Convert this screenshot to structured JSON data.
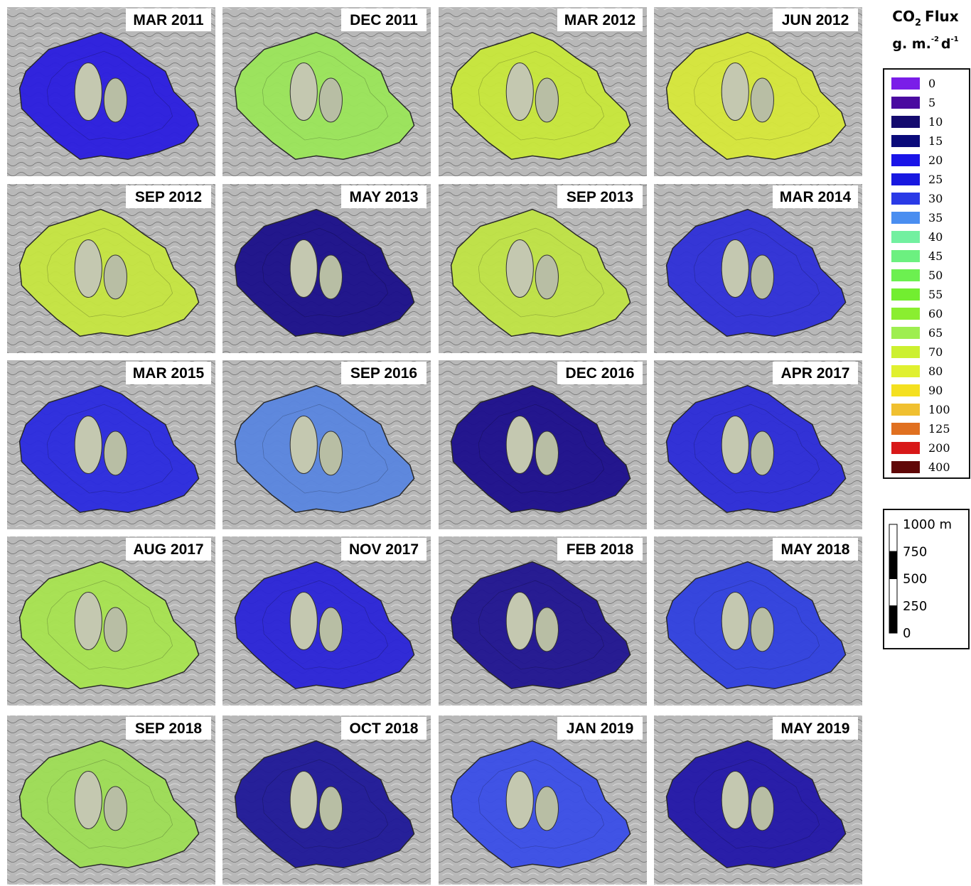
{
  "panels": [
    {
      "label": "MAR 2011",
      "color": "#2a1de0"
    },
    {
      "label": "DEC 2011",
      "color": "#9be65a"
    },
    {
      "label": "MAR 2012",
      "color": "#c8e83a"
    },
    {
      "label": "JUN 2012",
      "color": "#d7e83a"
    },
    {
      "label": "SEP 2012",
      "color": "#c6e640"
    },
    {
      "label": "MAY 2013",
      "color": "#1a0f8a"
    },
    {
      "label": "SEP 2013",
      "color": "#c0e445"
    },
    {
      "label": "MAR 2014",
      "color": "#2e30d8"
    },
    {
      "label": "MAR 2015",
      "color": "#2a2ae0"
    },
    {
      "label": "SEP 2016",
      "color": "#5a86e0"
    },
    {
      "label": "DEC 2016",
      "color": "#1c0e8c"
    },
    {
      "label": "APR 2017",
      "color": "#2b2bd8"
    },
    {
      "label": "AUG 2017",
      "color": "#a8e450"
    },
    {
      "label": "NOV 2017",
      "color": "#2a24d8"
    },
    {
      "label": "FEB 2018",
      "color": "#201490"
    },
    {
      "label": "MAY 2018",
      "color": "#3040e0"
    },
    {
      "label": "SEP 2018",
      "color": "#9ede55"
    },
    {
      "label": "OCT 2018",
      "color": "#1f1898"
    },
    {
      "label": "JAN 2019",
      "color": "#3a4ee8"
    },
    {
      "label": "MAY 2019",
      "color": "#2216a8"
    }
  ],
  "legend": {
    "title_main": "CO",
    "title_sub": "2",
    "title_end": "Flux",
    "unit_main": "g. m.",
    "unit_exp1": "-2",
    "unit_mid": "d",
    "unit_exp2": "-1",
    "entries": [
      {
        "label": "0",
        "color": "#7a1de8"
      },
      {
        "label": "5",
        "color": "#4a0aa0"
      },
      {
        "label": "10",
        "color": "#140a6e"
      },
      {
        "label": "15",
        "color": "#0a0a7a"
      },
      {
        "label": "20",
        "color": "#1a14e8"
      },
      {
        "label": "25",
        "color": "#1818e0"
      },
      {
        "label": "30",
        "color": "#2a3ae6"
      },
      {
        "label": "35",
        "color": "#4a8ef0"
      },
      {
        "label": "40",
        "color": "#72f0a0"
      },
      {
        "label": "45",
        "color": "#6cf080"
      },
      {
        "label": "50",
        "color": "#6cf050"
      },
      {
        "label": "55",
        "color": "#72ee30"
      },
      {
        "label": "60",
        "color": "#8aee30"
      },
      {
        "label": "65",
        "color": "#9eee50"
      },
      {
        "label": "70",
        "color": "#ccf030"
      },
      {
        "label": "80",
        "color": "#e0f030"
      },
      {
        "label": "90",
        "color": "#f4e020"
      },
      {
        "label": "100",
        "color": "#f0c030"
      },
      {
        "label": "125",
        "color": "#e07020"
      },
      {
        "label": "200",
        "color": "#d81818"
      },
      {
        "label": "400",
        "color": "#600808"
      }
    ]
  },
  "scale_bar": {
    "labels": [
      "1000 m",
      "750",
      "500",
      "250",
      "0"
    ]
  }
}
